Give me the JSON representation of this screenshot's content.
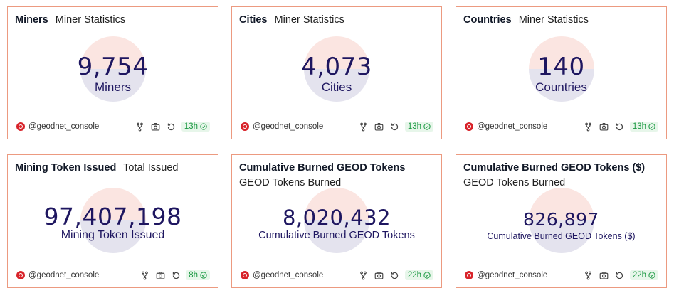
{
  "cards": [
    {
      "title": "Miners",
      "subtitle": "Miner Statistics",
      "value": "9,754",
      "label": "Miners",
      "user": "@geodnet_console",
      "age": "13h"
    },
    {
      "title": "Cities",
      "subtitle": "Miner Statistics",
      "value": "4,073",
      "label": "Cities",
      "user": "@geodnet_console",
      "age": "13h"
    },
    {
      "title": "Countries",
      "subtitle": "Miner Statistics",
      "value": "140",
      "label": "Countries",
      "user": "@geodnet_console",
      "age": "13h"
    },
    {
      "title": "Mining Token Issued",
      "subtitle": "Total Issued",
      "value": "97,407,198",
      "label": "Mining Token Issued",
      "user": "@geodnet_console",
      "age": "8h"
    },
    {
      "title": "Cumulative Burned GEOD Tokens",
      "subtitle": "GEOD Tokens Burned",
      "value": "8,020,432",
      "label": "Cumulative Burned GEOD Tokens",
      "user": "@geodnet_console",
      "age": "22h"
    },
    {
      "title": "Cumulative Burned GEOD Tokens ($)",
      "subtitle": "GEOD Tokens Burned",
      "value": "826,897",
      "label": "Cumulative Burned GEOD Tokens ($)",
      "user": "@geodnet_console",
      "age": "22h"
    }
  ],
  "colors": {
    "card_border": "#ec9a80",
    "value_text": "#1e1660",
    "donut_pink": "#fbe5e1",
    "donut_lavender": "#e4e3ee",
    "badge_bg": "#e7f6ea",
    "badge_text": "#1d9a44",
    "logo_red": "#d8232a"
  },
  "icons": {
    "logo": "geodnet-logo-icon",
    "fork": "fork-icon",
    "screenshot": "camera-icon",
    "refresh": "refresh-icon",
    "fresh": "check-circle-icon"
  }
}
